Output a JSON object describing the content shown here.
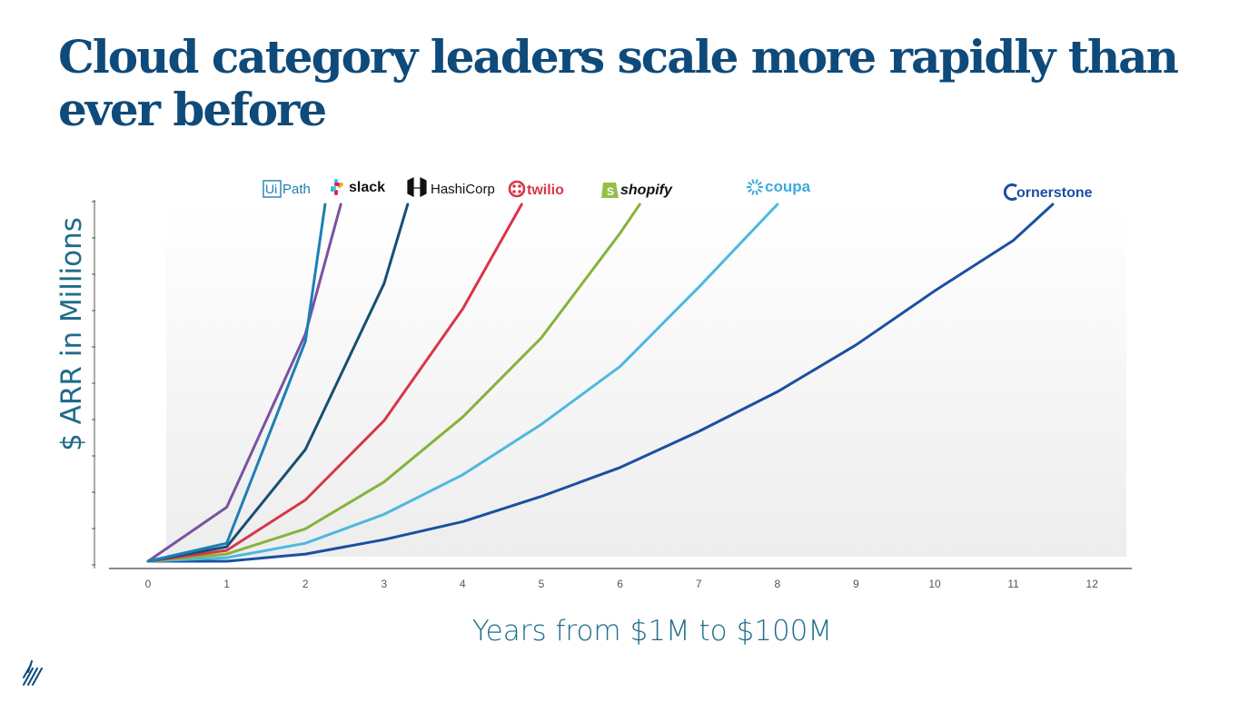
{
  "slide": {
    "title": "Cloud category leaders scale more rapidly than ever before"
  },
  "colors": {
    "title": "#0e4a7a",
    "axis_label": "#1f6c8c"
  },
  "chart_data": {
    "type": "line",
    "title": "",
    "xlabel": "Years from $1M to $100M",
    "ylabel": "$ ARR in Millions",
    "x_ticks": [
      0,
      1,
      2,
      3,
      4,
      5,
      6,
      7,
      8,
      9,
      10,
      11,
      12
    ],
    "xlim": [
      0,
      12.5
    ],
    "ylim": [
      0,
      100
    ],
    "grid": false,
    "legend": "series names at line ends, top",
    "series": [
      {
        "name": "UiPath",
        "color": "#1d7fb6",
        "x": [
          0,
          1,
          2,
          2.25
        ],
        "y": [
          1,
          6,
          62,
          100
        ]
      },
      {
        "name": "slack",
        "color": "#7b52a1",
        "x": [
          0,
          1,
          2,
          2.45
        ],
        "y": [
          1,
          16,
          64,
          100
        ]
      },
      {
        "name": "HashiCorp",
        "color": "#164f74",
        "x": [
          0,
          1,
          2,
          3,
          3.3
        ],
        "y": [
          1,
          5,
          32,
          78,
          100
        ]
      },
      {
        "name": "twilio",
        "color": "#d9354a",
        "x": [
          0,
          1,
          2,
          3,
          4,
          4.75
        ],
        "y": [
          1,
          4,
          18,
          40,
          71,
          100
        ]
      },
      {
        "name": "shopify",
        "color": "#86b33b",
        "x": [
          0,
          1,
          2,
          3,
          4,
          5,
          6,
          6.25
        ],
        "y": [
          1,
          3,
          10,
          23,
          41,
          63,
          92,
          100
        ]
      },
      {
        "name": "coupa",
        "color": "#4db8e0",
        "x": [
          0,
          1,
          2,
          3,
          4,
          5,
          6,
          7,
          8
        ],
        "y": [
          1,
          2,
          6,
          14,
          25,
          39,
          55,
          77,
          100
        ]
      },
      {
        "name": "Cornerstone",
        "color": "#1b4fa1",
        "x": [
          0,
          1,
          2,
          3,
          4,
          5,
          6,
          7,
          8,
          9,
          10,
          11,
          11.5
        ],
        "y": [
          1,
          1,
          3,
          7,
          12,
          19,
          27,
          37,
          48,
          61,
          76,
          90,
          100
        ]
      }
    ]
  },
  "chart_labels": [
    {
      "name": "UiPath",
      "display": "UiPath",
      "color": "#1d7fb6",
      "icon": "uipath-icon"
    },
    {
      "name": "slack",
      "display": "slack",
      "color": "#111111",
      "icon": "slack-icon"
    },
    {
      "name": "HashiCorp",
      "display": "HashiCorp",
      "color": "#111111",
      "icon": "hashicorp-icon"
    },
    {
      "name": "twilio",
      "display": "twilio",
      "color": "#d9354a",
      "icon": "twilio-icon"
    },
    {
      "name": "shopify",
      "display": "shopify",
      "color": "#111111",
      "icon": "shopify-bag-icon"
    },
    {
      "name": "coupa",
      "display": "coupa",
      "color": "#3fa9dd",
      "icon": "coupa-icon"
    },
    {
      "name": "Cornerstone",
      "display": "ornerstone",
      "color": "#1b4fa1",
      "icon": "cornerstone-c-icon"
    }
  ],
  "footer": {
    "logo_icon": "brand-slash-icon"
  }
}
